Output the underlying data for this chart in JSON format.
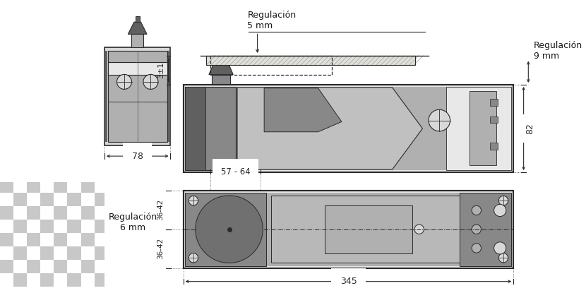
{
  "bg_white": "#ffffff",
  "bg_checker1": "#ffffff",
  "bg_checker2": "#c8c8c8",
  "checker_size": 20,
  "outline": "#2a2a2a",
  "dim_line": "#2a2a2a",
  "text_col": "#1a1a1a",
  "dev_light": "#d8d8d8",
  "dev_mid": "#b0b0b0",
  "dev_dark": "#888888",
  "dev_darker": "#606060",
  "dev_body_light": "#e8e8e8",
  "hatch_col": "#aaaaaa",
  "annotations": {
    "reg5mm": "Regulación\n5 mm",
    "reg9mm": "Regulación\n9 mm",
    "reg6mm": "Regulación\n6 mm",
    "d78": "78",
    "d82": "82",
    "d345": "345",
    "d5764": "57 - 64",
    "d3t1": "3±1",
    "d3642a": "36-42",
    "d3642b": "36-42"
  },
  "layout": {
    "fig_w": 8.3,
    "fig_h": 4.15,
    "dpi": 100,
    "xlim": [
      0,
      830
    ],
    "ylim": [
      0,
      415
    ]
  }
}
